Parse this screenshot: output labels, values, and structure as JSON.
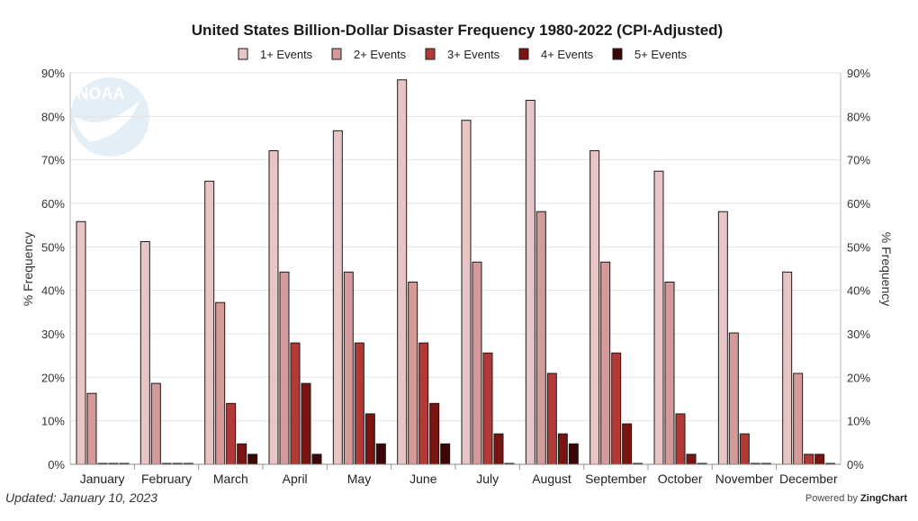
{
  "chart_data": {
    "type": "bar",
    "title": "United States Billion-Dollar Disaster Frequency 1980-2022 (CPI-Adjusted)",
    "ylabel": "% Frequency",
    "ylabel_right": "% Frequency",
    "ylim": [
      0,
      90
    ],
    "yticks": [
      "0%",
      "10%",
      "20%",
      "30%",
      "40%",
      "50%",
      "60%",
      "70%",
      "80%",
      "90%"
    ],
    "legend_position": "top-center",
    "categories": [
      "January",
      "February",
      "March",
      "April",
      "May",
      "June",
      "July",
      "August",
      "September",
      "October",
      "November",
      "December"
    ],
    "series": [
      {
        "name": "1+ Events",
        "color": "#e8c4c4",
        "values": [
          55.8,
          51.2,
          65.1,
          72.1,
          76.7,
          88.4,
          79.1,
          83.7,
          72.1,
          67.4,
          58.1,
          44.2
        ]
      },
      {
        "name": "2+ Events",
        "color": "#d49a9a",
        "values": [
          16.3,
          18.6,
          37.2,
          44.2,
          44.2,
          41.9,
          46.5,
          58.1,
          46.5,
          41.9,
          30.2,
          20.9
        ]
      },
      {
        "name": "3+ Events",
        "color": "#b23a36",
        "values": [
          0,
          0,
          14.0,
          27.9,
          27.9,
          27.9,
          25.6,
          20.9,
          25.6,
          11.6,
          7.0,
          2.3
        ]
      },
      {
        "name": "4+ Events",
        "color": "#7a1410",
        "values": [
          0,
          0,
          4.7,
          18.6,
          11.6,
          14.0,
          7.0,
          7.0,
          9.3,
          2.3,
          0,
          2.3
        ]
      },
      {
        "name": "5+ Events",
        "color": "#3d0606",
        "values": [
          0,
          0,
          2.3,
          2.3,
          4.7,
          4.7,
          0,
          4.7,
          0,
          0,
          0,
          0
        ]
      }
    ]
  },
  "watermark": {
    "text": "NOAA"
  },
  "footer": {
    "updated": "Updated: January 10, 2023",
    "powered_prefix": "Powered by",
    "powered_brand": "ZingChart"
  }
}
